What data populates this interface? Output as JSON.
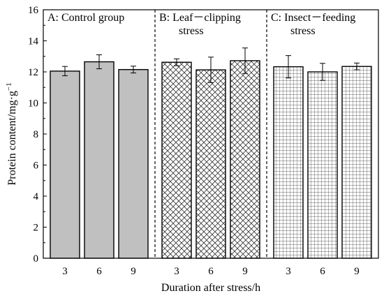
{
  "chart_data": {
    "type": "bar",
    "title": "",
    "xlabel": "Duration after stress/h",
    "ylabel": "Protein content/mg·g",
    "ylabel_sup": "−1",
    "ylim": [
      0,
      16
    ],
    "yticks": [
      0,
      2,
      4,
      6,
      8,
      10,
      12,
      14,
      16
    ],
    "grid": false,
    "groups": [
      {
        "label": "A: Control group",
        "label_lines": [
          "A: Control group"
        ],
        "pattern": "solid-gray",
        "categories": [
          "3",
          "6",
          "9"
        ],
        "values": [
          12.05,
          12.65,
          12.15
        ],
        "errors": [
          0.3,
          0.45,
          0.22
        ]
      },
      {
        "label": "B: Leaf－clipping stress",
        "label_lines": [
          "B: Leaf－clipping",
          "stress"
        ],
        "pattern": "crosshatch",
        "categories": [
          "3",
          "6",
          "9"
        ],
        "values": [
          12.62,
          12.13,
          12.72
        ],
        "errors": [
          0.22,
          0.82,
          0.82
        ]
      },
      {
        "label": "C: Insect－feeding stress",
        "label_lines": [
          "C: Insect－feeding",
          "stress"
        ],
        "pattern": "grid",
        "categories": [
          "3",
          "6",
          "9"
        ],
        "values": [
          12.33,
          12.0,
          12.35
        ],
        "errors": [
          0.72,
          0.55,
          0.22
        ]
      }
    ],
    "colors": {
      "bar_fill_solid": "#c0c0c0",
      "bar_edge": "#000000",
      "pattern_line": "#333333"
    }
  }
}
